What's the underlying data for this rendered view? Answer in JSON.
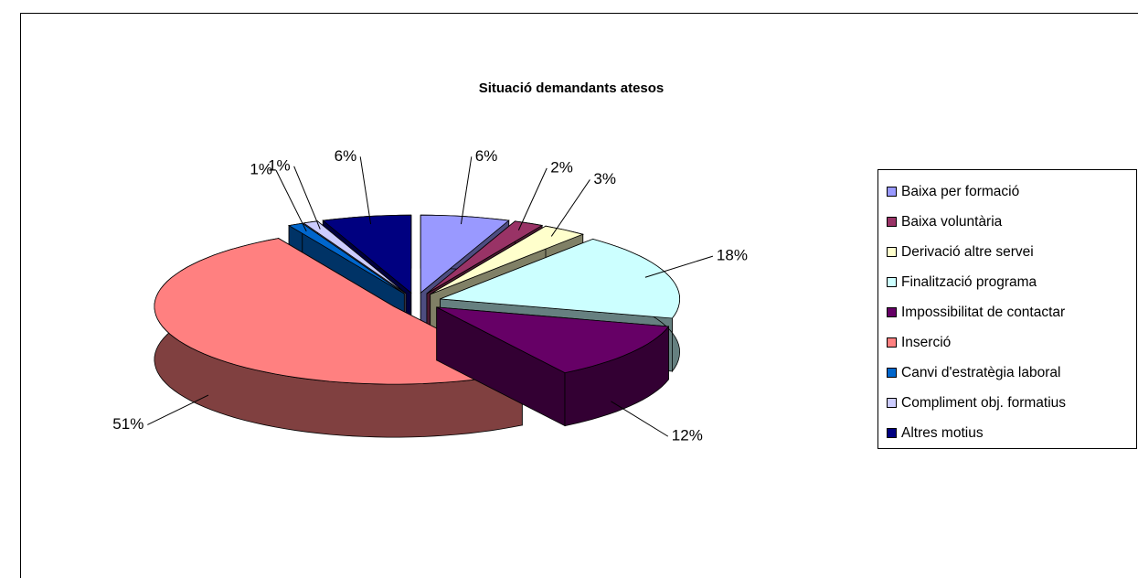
{
  "chart_data": {
    "type": "pie",
    "title": "Situació demandants atesos",
    "categories": [
      "Baixa per formació",
      "Baixa voluntària",
      "Derivació altre servei",
      "Finalització programa",
      "Impossibilitat de contactar",
      "Inserció",
      "Canvi d'estratègia laboral",
      "Compliment obj. formatius",
      "Altres motius"
    ],
    "values": [
      6,
      2,
      3,
      18,
      12,
      51,
      1,
      1,
      6
    ],
    "value_labels": [
      "6%",
      "2%",
      "3%",
      "18%",
      "12%",
      "51%",
      "1%",
      "1%",
      "6%"
    ],
    "colors": [
      "#9999ff",
      "#993366",
      "#ffffcc",
      "#ccffff",
      "#660066",
      "#ff8080",
      "#0066cc",
      "#ccccff",
      "#000080"
    ],
    "legend": "right"
  }
}
